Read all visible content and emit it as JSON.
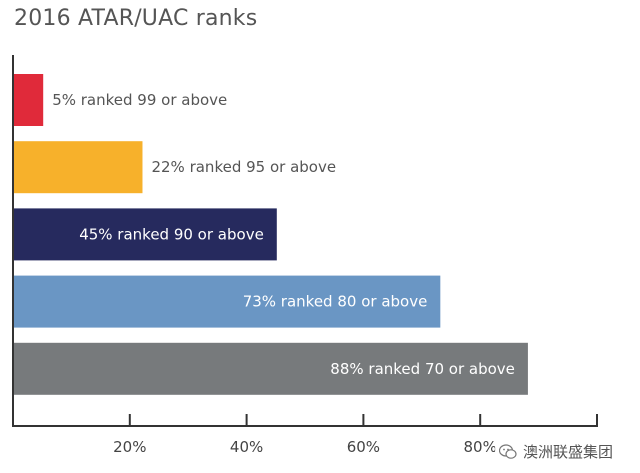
{
  "chart_data": {
    "type": "bar",
    "orientation": "horizontal",
    "title": "2016 ATAR/UAC ranks",
    "xlabel": "",
    "ylabel": "",
    "xlim": [
      0,
      100
    ],
    "xticks": [
      20,
      40,
      60,
      80
    ],
    "xtick_labels": [
      "20%",
      "40%",
      "60%",
      "80%"
    ],
    "grid": false,
    "legend": "none",
    "bars": [
      {
        "value": 5,
        "label": "5% ranked 99 or above",
        "color": "#e02a3a",
        "label_color": "#555555",
        "label_position": "outside"
      },
      {
        "value": 22,
        "label": "22% ranked 95 or above",
        "color": "#f7b12b",
        "label_color": "#555555",
        "label_position": "outside"
      },
      {
        "value": 45,
        "label": "45% ranked 90 or above",
        "color": "#262a5e",
        "label_color": "#ffffff",
        "label_position": "inside"
      },
      {
        "value": 73,
        "label": "73% ranked 80 or above",
        "color": "#6a96c4",
        "label_color": "#ffffff",
        "label_position": "inside"
      },
      {
        "value": 88,
        "label": "88% ranked 70 or above",
        "color": "#777a7c",
        "label_color": "#ffffff",
        "label_position": "inside"
      }
    ]
  },
  "watermark": {
    "text": "澳洲联盛集团",
    "icon": "wechat-icon"
  }
}
